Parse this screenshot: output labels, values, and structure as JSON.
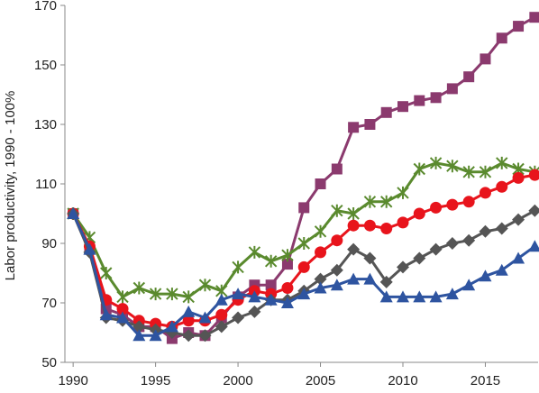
{
  "chart_data": {
    "type": "line",
    "title": "",
    "xlabel": "",
    "ylabel": "Labor productivity, 1990 - 100%",
    "xlim": [
      1989.5,
      2018.2
    ],
    "ylim": [
      50,
      170
    ],
    "x_ticks": [
      1990,
      1995,
      2000,
      2005,
      2010,
      2015
    ],
    "y_ticks": [
      50,
      70,
      90,
      110,
      130,
      150,
      170
    ],
    "x_tick_labels": [
      "1990",
      "1995",
      "2000",
      "2005",
      "2010",
      "2015"
    ],
    "y_tick_labels": [
      "50",
      "70",
      "90",
      "110",
      "130",
      "150",
      "170"
    ],
    "grid": false,
    "legend": "none",
    "x": [
      1990,
      1991,
      1992,
      1993,
      1994,
      1995,
      1996,
      1997,
      1998,
      1999,
      2000,
      2001,
      2002,
      2003,
      2004,
      2005,
      2006,
      2007,
      2008,
      2009,
      2010,
      2011,
      2012,
      2013,
      2014,
      2015,
      2016,
      2017,
      2018
    ],
    "series": [
      {
        "color": "#8b3a6e",
        "marker": "square",
        "values": [
          100,
          88,
          68,
          66,
          62,
          62,
          58,
          60,
          59,
          65,
          72,
          76,
          76,
          83,
          102,
          110,
          115,
          129,
          130,
          134,
          136,
          138,
          139,
          142,
          146,
          152,
          159,
          163,
          166
        ]
      },
      {
        "color": "#5a8a2e",
        "marker": "star",
        "values": [
          100,
          92,
          80,
          72,
          75,
          73,
          73,
          72,
          76,
          74,
          82,
          87,
          84,
          86,
          90,
          94,
          101,
          100,
          104,
          104,
          107,
          115,
          117,
          116,
          114,
          114,
          117,
          115,
          114
        ]
      },
      {
        "color": "#e8141c",
        "marker": "circle",
        "values": [
          100,
          89,
          71,
          68,
          64,
          63,
          62,
          64,
          64,
          66,
          71,
          74,
          73,
          75,
          82,
          87,
          91,
          96,
          96,
          95,
          97,
          100,
          102,
          103,
          104,
          107,
          109,
          112,
          113
        ]
      },
      {
        "color": "#555555",
        "marker": "diamond",
        "values": [
          100,
          87,
          65,
          64,
          62,
          61,
          60,
          59,
          59,
          62,
          65,
          67,
          71,
          71,
          74,
          78,
          81,
          88,
          85,
          77,
          82,
          85,
          88,
          90,
          91,
          94,
          95,
          98,
          101
        ]
      },
      {
        "color": "#2e54a0",
        "marker": "triangle",
        "values": [
          100,
          88,
          66,
          65,
          59,
          59,
          62,
          67,
          65,
          71,
          73,
          72,
          71,
          70,
          73,
          75,
          76,
          78,
          78,
          72,
          72,
          72,
          72,
          73,
          76,
          79,
          81,
          85,
          89
        ]
      }
    ]
  }
}
